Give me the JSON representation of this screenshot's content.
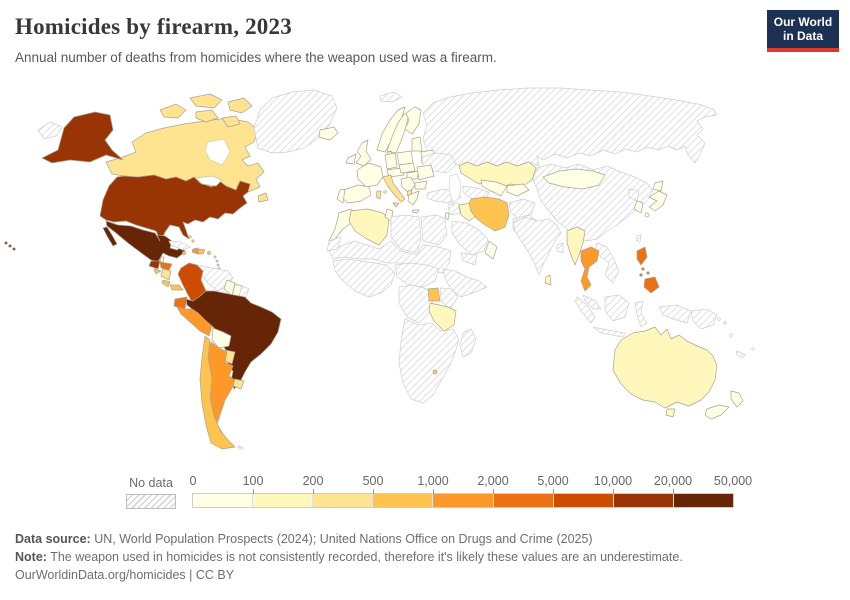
{
  "header": {
    "title": "Homicides by firearm, 2023",
    "subtitle": "Annual number of deaths from homicides where the weapon used was a firearm.",
    "logo_line1": "Our World",
    "logo_line2": "in Data"
  },
  "legend": {
    "no_data_label": "No data",
    "ticks": [
      "0",
      "100",
      "200",
      "500",
      "1,000",
      "2,000",
      "5,000",
      "10,000",
      "20,000",
      "50,000"
    ],
    "colors": [
      "#FFFFE5",
      "#FFF7BC",
      "#FEE391",
      "#FEC44F",
      "#FE9929",
      "#EC7014",
      "#CC4C02",
      "#993404",
      "#662506"
    ]
  },
  "footer": {
    "data_source_label": "Data source:",
    "data_source_text": " UN, World Population Prospects (2024); United Nations Office on Drugs and Crime (2025)",
    "note_label": "Note:",
    "note_text": " The weapon used in homicides is not consistently recorded, therefore it's likely these values are an underestimate.",
    "license": "OurWorldinData.org/homicides | CC BY"
  },
  "map": {
    "countries": {
      "united-states": 7,
      "canada": 2,
      "greenland": "no-data",
      "iceland": 0,
      "mexico": 8,
      "guatemala": 7,
      "belize": 1,
      "honduras": 5,
      "el-salvador": 3,
      "nicaragua": 2,
      "costa-rica": 3,
      "panama": 3,
      "cuba": "no-data",
      "bahamas": 2,
      "jamaica": 3,
      "haiti": 4,
      "dominican-republic": 3,
      "puerto-rico": 3,
      "lesser-antilles": 0,
      "trinidad-and-tobago": 1,
      "colombia": 6,
      "venezuela": "no-data",
      "guyana": 0,
      "suriname": 0,
      "french-guiana": "no-data",
      "ecuador": 5,
      "peru": 4,
      "brazil": 8,
      "bolivia": 0,
      "paraguay": 2,
      "uruguay": 2,
      "chile": 3,
      "argentina": 4,
      "falkland-islands": "no-data",
      "ireland": 0,
      "united-kingdom": 0,
      "norway": 0,
      "sweden": 0,
      "finland": 0,
      "denmark": 0,
      "baltics": 0,
      "belarus": 0,
      "poland": 0,
      "germany": 0,
      "france": 0,
      "spain": 0,
      "portugal": 0,
      "alpine-states": 0,
      "czech-slovakia": 0,
      "hungary": 0,
      "romania": 0,
      "ukraine": "no-data",
      "balkans": 0,
      "albania": 2,
      "bulgaria": 0,
      "greece": 0,
      "italy": 2,
      "russia": "no-data",
      "kazakhstan": 1,
      "turkmenistan": "no-data",
      "uzbekistan": 0,
      "kyrgyzstan-tajikistan": 0,
      "turkey": "no-data",
      "levant": "no-data",
      "israel": 0,
      "iraq": 1,
      "iran": 3,
      "saudi-arabia": "no-data",
      "yemen": "no-data",
      "oman": 0,
      "afghanistan": "no-data",
      "pakistan": "no-data",
      "morocco": 0,
      "western-sahara": "no-data",
      "algeria": 1,
      "tunisia": 0,
      "libya": "no-data",
      "egypt": "no-data",
      "sahel": "no-data",
      "west-africa": "no-data",
      "nigeria-cameroon": "no-data",
      "horn-of-africa": "no-data",
      "congo-basin": "no-data",
      "uganda": 3,
      "kenya": "no-data",
      "tanzania": 1,
      "southern-africa": "no-data",
      "eswatini": 3,
      "madagascar": "no-data",
      "china": "no-data",
      "mongolia": 0,
      "india": "no-data",
      "bangladesh": "no-data",
      "sri-lanka": 1,
      "north-korea": "no-data",
      "south-korea": 0,
      "japan": 0,
      "taiwan": "no-data",
      "myanmar": 1,
      "thailand": 4,
      "indochina": "no-data",
      "malaysia": "no-data",
      "indonesia": "no-data",
      "philippines": 5,
      "papua-new-guinea": "no-data",
      "australia": 1,
      "new-zealand": 0,
      "pacific-islands": "no-data"
    }
  },
  "chart_data": {
    "type": "choropleth",
    "title": "Homicides by firearm, 2023",
    "subtitle": "Annual number of deaths from homicides where the weapon used was a firearm.",
    "unit": "annual deaths",
    "legend_bin_edges": [
      "0",
      "100",
      "200",
      "500",
      "1,000",
      "2,000",
      "5,000",
      "10,000",
      "20,000",
      "50,000"
    ],
    "palette": [
      "#FFFFE5",
      "#FFF7BC",
      "#FEE391",
      "#FEC44F",
      "#FE9929",
      "#EC7014",
      "#CC4C02",
      "#993404",
      "#662506"
    ],
    "legend_position": "bottom",
    "values": {
      "United States": "10,000–20,000",
      "Canada": "200–500",
      "Mexico": "20,000–50,000",
      "Guatemala": "10,000–20,000",
      "Belize": "100–200",
      "Honduras": "2,000–5,000",
      "El Salvador": "500–1,000",
      "Nicaragua": "200–500",
      "Costa Rica": "500–1,000",
      "Panama": "500–1,000",
      "Bahamas": "200–500",
      "Jamaica": "500–1,000",
      "Haiti": "1,000–2,000",
      "Dominican Republic": "500–1,000",
      "Puerto Rico": "500–1,000",
      "Trinidad and Tobago": "100–200",
      "Colombia": "5,000–10,000",
      "Ecuador": "2,000–5,000",
      "Peru": "1,000–2,000",
      "Brazil": "20,000–50,000",
      "Bolivia": "0–100",
      "Guyana": "0–100",
      "Suriname": "0–100",
      "Paraguay": "200–500",
      "Uruguay": "200–500",
      "Chile": "500–1,000",
      "Argentina": "1,000–2,000",
      "Iceland": "0–100",
      "Ireland": "0–100",
      "United Kingdom": "0–100",
      "Norway": "0–100",
      "Sweden": "0–100",
      "Finland": "0–100",
      "Denmark": "0–100",
      "Baltic states": "0–100",
      "Belarus": "0–100",
      "Poland": "0–100",
      "Germany": "0–100",
      "France": "0–100",
      "Spain": "0–100",
      "Portugal": "0–100",
      "Switzerland and Austria": "0–100",
      "Czechia and Slovakia": "0–100",
      "Hungary": "0–100",
      "Romania": "0–100",
      "Balkans": "0–100",
      "Albania": "200–500",
      "Bulgaria": "0–100",
      "Greece": "0–100",
      "Italy": "200–500",
      "Kazakhstan": "100–200",
      "Uzbekistan": "0–100",
      "Kyrgyzstan and Tajikistan": "0–100",
      "Israel": "0–100",
      "Iraq": "100–200",
      "Iran": "500–1,000",
      "Oman": "0–100",
      "Morocco": "0–100",
      "Algeria": "100–200",
      "Tunisia": "0–100",
      "Uganda": "500–1,000",
      "Tanzania": "100–200",
      "Eswatini": "500–1,000",
      "Mongolia": "0–100",
      "South Korea": "0–100",
      "Japan": "0–100",
      "Myanmar": "100–200",
      "Thailand": "1,000–2,000",
      "Sri Lanka": "100–200",
      "Philippines": "2,000–5,000",
      "Australia": "100–200",
      "New Zealand": "0–100"
    },
    "no_data": [
      "Greenland",
      "Cuba",
      "Venezuela",
      "French Guiana",
      "Falkland Islands",
      "Russia",
      "Ukraine",
      "Turkey",
      "Syria and Levant",
      "Saudi Arabia",
      "Yemen",
      "Afghanistan",
      "Pakistan",
      "Turkmenistan",
      "Western Sahara",
      "Libya",
      "Egypt",
      "Sahel and Sudan",
      "West Africa",
      "Nigeria and Central Africa",
      "Horn of Africa",
      "Congo Basin",
      "Kenya",
      "Southern Africa",
      "Madagascar",
      "China",
      "India",
      "Bangladesh",
      "North Korea",
      "Taiwan",
      "Vietnam, Laos and Cambodia",
      "Malaysia",
      "Indonesia",
      "Papua New Guinea",
      "Pacific Islands"
    ]
  }
}
